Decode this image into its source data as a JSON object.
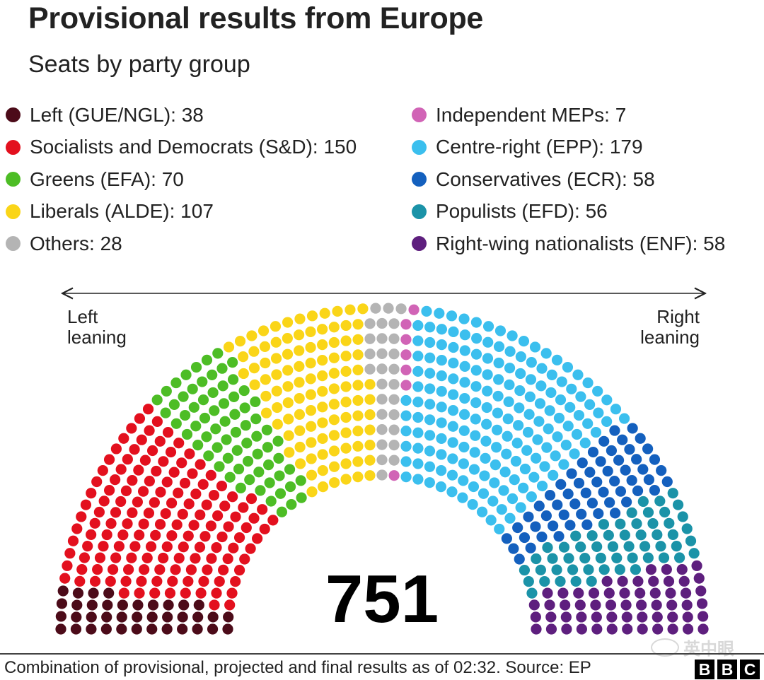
{
  "title": "Provisional results from Europe",
  "subtitle": "Seats by party group",
  "legend_left": [
    {
      "label": "Left (GUE/NGL): 38",
      "color": "#4c0b19"
    },
    {
      "label": "Socialists and Democrats (S&D): 150",
      "color": "#e3101e"
    },
    {
      "label": "Greens (EFA): 70",
      "color": "#4dbd25"
    },
    {
      "label": "Liberals (ALDE): 107",
      "color": "#fad518"
    },
    {
      "label": "Others: 28",
      "color": "#b4b4b4"
    }
  ],
  "legend_right": [
    {
      "label": "Independent MEPs: 7",
      "color": "#d164b6"
    },
    {
      "label": "Centre-right (EPP): 179",
      "color": "#3bbfee"
    },
    {
      "label": "Conservatives (ECR): 58",
      "color": "#1460be"
    },
    {
      "label": "Populists (EFD): 56",
      "color": "#1b93a8"
    },
    {
      "label": "Right-wing nationalists (ENF): 58",
      "color": "#5e1f7e"
    }
  ],
  "chart_data": {
    "type": "parliament",
    "title": "Provisional results from Europe",
    "subtitle": "Seats by party group",
    "total_seats": 751,
    "total_label": "751",
    "axis_left_label": "Left leaning",
    "axis_right_label": "Right leaning",
    "series": [
      {
        "name": "Left (GUE/NGL)",
        "seats": 38,
        "color": "#4c0b19"
      },
      {
        "name": "Socialists and Democrats (S&D)",
        "seats": 150,
        "color": "#e3101e"
      },
      {
        "name": "Greens (EFA)",
        "seats": 70,
        "color": "#4dbd25"
      },
      {
        "name": "Liberals (ALDE)",
        "seats": 107,
        "color": "#fad518"
      },
      {
        "name": "Others",
        "seats": 28,
        "color": "#b4b4b4"
      },
      {
        "name": "Independent MEPs",
        "seats": 7,
        "color": "#d164b6"
      },
      {
        "name": "Centre-right (EPP)",
        "seats": 179,
        "color": "#3bbfee"
      },
      {
        "name": "Conservatives (ECR)",
        "seats": 58,
        "color": "#1460be"
      },
      {
        "name": "Populists (EFD)",
        "seats": 56,
        "color": "#1b93a8"
      },
      {
        "name": "Right-wing nationalists (ENF)",
        "seats": 58,
        "color": "#5e1f7e"
      }
    ]
  },
  "footer": {
    "source": "Combination of provisional, projected and final results as of 02:32. Source: EP",
    "logo_letters": [
      "B",
      "B",
      "C"
    ],
    "watermark": "英中眼"
  }
}
